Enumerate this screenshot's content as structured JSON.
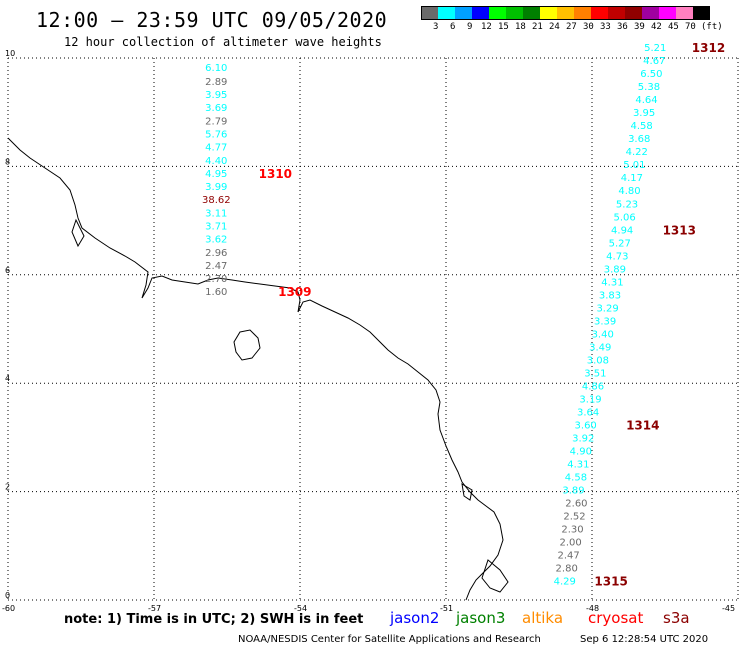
{
  "header": {
    "title": "12:00 – 23:59 UTC 09/05/2020",
    "subtitle": "12 hour collection of altimeter wave heights"
  },
  "legend": {
    "colors": [
      "#6a6a6a",
      "#00ffff",
      "#00a0ff",
      "#0000ff",
      "#00ff00",
      "#00c000",
      "#008000",
      "#ffff00",
      "#ffc000",
      "#ff8000",
      "#ff0000",
      "#c00000",
      "#900000",
      "#a000a0",
      "#ff00ff",
      "#ff80c0",
      "#000000"
    ],
    "ticks": [
      "3",
      "6",
      "9",
      "12",
      "15",
      "18",
      "21",
      "24",
      "27",
      "30",
      "33",
      "36",
      "39",
      "42",
      "45",
      "70"
    ],
    "unit": "(ft)"
  },
  "note": "note:  1) Time is in UTC; 2) SWH is in feet",
  "satellites": [
    {
      "name": "jason2",
      "color": "#0000ff"
    },
    {
      "name": "jason3",
      "color": "#008000"
    },
    {
      "name": "altika",
      "color": "#ff8c00"
    },
    {
      "name": "cryosat",
      "color": "#ff0000"
    },
    {
      "name": "s3a",
      "color": "#8b0000"
    }
  ],
  "footer": {
    "center": "NOAA/NESDIS Center for Satellite Applications and Research",
    "timestamp": "Sep  6 12:28:54 UTC 2020"
  },
  "chart_data": {
    "type": "scatter",
    "xlim": [
      -60,
      -45
    ],
    "ylim": [
      0,
      10
    ],
    "x_ticks": [
      "-60",
      "-57",
      "-54",
      "-51",
      "-48",
      "-45"
    ],
    "y_ticks": [
      "0",
      "2",
      "4",
      "6",
      "8",
      "10"
    ],
    "grid": true,
    "series": [
      {
        "track": "west",
        "points": [
          {
            "lon": -55.72,
            "lat": 9.83,
            "value": "6.10",
            "color": "#00ffff"
          },
          {
            "lon": -55.72,
            "lat": 9.58,
            "value": "2.89",
            "color": "#6a6a6a"
          },
          {
            "lon": -55.72,
            "lat": 9.34,
            "value": "3.95",
            "color": "#00ffff"
          },
          {
            "lon": -55.72,
            "lat": 9.1,
            "value": "3.69",
            "color": "#00ffff"
          },
          {
            "lon": -55.72,
            "lat": 8.85,
            "value": "2.79",
            "color": "#6a6a6a"
          },
          {
            "lon": -55.72,
            "lat": 8.61,
            "value": "5.76",
            "color": "#00ffff"
          },
          {
            "lon": -55.72,
            "lat": 8.37,
            "value": "4.77",
            "color": "#00ffff"
          },
          {
            "lon": -55.72,
            "lat": 8.12,
            "value": "4.40",
            "color": "#00ffff"
          },
          {
            "lon": -55.72,
            "lat": 7.88,
            "value": "4.95",
            "color": "#00ffff"
          },
          {
            "lon": -55.72,
            "lat": 7.64,
            "value": "3.99",
            "color": "#00ffff"
          },
          {
            "lon": -55.72,
            "lat": 7.4,
            "value": "38.62",
            "color": "#900000"
          },
          {
            "lon": -55.72,
            "lat": 7.15,
            "value": "3.11",
            "color": "#00ffff"
          },
          {
            "lon": -55.72,
            "lat": 6.91,
            "value": "3.71",
            "color": "#00ffff"
          },
          {
            "lon": -55.72,
            "lat": 6.67,
            "value": "3.62",
            "color": "#00ffff"
          },
          {
            "lon": -55.72,
            "lat": 6.42,
            "value": "2.96",
            "color": "#6a6a6a"
          },
          {
            "lon": -55.72,
            "lat": 6.18,
            "value": "2.47",
            "color": "#6a6a6a"
          },
          {
            "lon": -55.72,
            "lat": 5.94,
            "value": "2.70",
            "color": "#6a6a6a"
          },
          {
            "lon": -55.72,
            "lat": 5.7,
            "value": "1.60",
            "color": "#6a6a6a"
          }
        ]
      },
      {
        "track": "east",
        "points": [
          {
            "lon": -46.7,
            "lat": 10.2,
            "value": "5.21",
            "color": "#00ffff"
          },
          {
            "lon": -46.72,
            "lat": 9.96,
            "value": "4.67",
            "color": "#00ffff"
          },
          {
            "lon": -46.78,
            "lat": 9.72,
            "value": "6.50",
            "color": "#00ffff"
          },
          {
            "lon": -46.83,
            "lat": 9.48,
            "value": "5.38",
            "color": "#00ffff"
          },
          {
            "lon": -46.88,
            "lat": 9.24,
            "value": "4.64",
            "color": "#00ffff"
          },
          {
            "lon": -46.93,
            "lat": 9.0,
            "value": "3.95",
            "color": "#00ffff"
          },
          {
            "lon": -46.98,
            "lat": 8.76,
            "value": "4.58",
            "color": "#00ffff"
          },
          {
            "lon": -47.03,
            "lat": 8.52,
            "value": "3.68",
            "color": "#00ffff"
          },
          {
            "lon": -47.08,
            "lat": 8.28,
            "value": "4.22",
            "color": "#00ffff"
          },
          {
            "lon": -47.13,
            "lat": 8.04,
            "value": "5.01",
            "color": "#00ffff"
          },
          {
            "lon": -47.18,
            "lat": 7.8,
            "value": "4.17",
            "color": "#00ffff"
          },
          {
            "lon": -47.23,
            "lat": 7.56,
            "value": "4.80",
            "color": "#00ffff"
          },
          {
            "lon": -47.28,
            "lat": 7.32,
            "value": "5.23",
            "color": "#00ffff"
          },
          {
            "lon": -47.33,
            "lat": 7.08,
            "value": "5.06",
            "color": "#00ffff"
          },
          {
            "lon": -47.38,
            "lat": 6.84,
            "value": "4.94",
            "color": "#00ffff"
          },
          {
            "lon": -47.43,
            "lat": 6.6,
            "value": "5.27",
            "color": "#00ffff"
          },
          {
            "lon": -47.48,
            "lat": 6.36,
            "value": "4.73",
            "color": "#00ffff"
          },
          {
            "lon": -47.53,
            "lat": 6.12,
            "value": "3.89",
            "color": "#00ffff"
          },
          {
            "lon": -47.58,
            "lat": 5.88,
            "value": "4.31",
            "color": "#00ffff"
          },
          {
            "lon": -47.63,
            "lat": 5.64,
            "value": "3.83",
            "color": "#00ffff"
          },
          {
            "lon": -47.68,
            "lat": 5.4,
            "value": "3.29",
            "color": "#00ffff"
          },
          {
            "lon": -47.73,
            "lat": 5.16,
            "value": "3.39",
            "color": "#00ffff"
          },
          {
            "lon": -47.78,
            "lat": 4.92,
            "value": "3.40",
            "color": "#00ffff"
          },
          {
            "lon": -47.83,
            "lat": 4.68,
            "value": "3.49",
            "color": "#00ffff"
          },
          {
            "lon": -47.88,
            "lat": 4.44,
            "value": "3.08",
            "color": "#00ffff"
          },
          {
            "lon": -47.93,
            "lat": 4.2,
            "value": "3.51",
            "color": "#00ffff"
          },
          {
            "lon": -47.98,
            "lat": 3.96,
            "value": "4.86",
            "color": "#00ffff"
          },
          {
            "lon": -48.03,
            "lat": 3.72,
            "value": "3.19",
            "color": "#00ffff"
          },
          {
            "lon": -48.08,
            "lat": 3.48,
            "value": "3.64",
            "color": "#00ffff"
          },
          {
            "lon": -48.13,
            "lat": 3.24,
            "value": "3.60",
            "color": "#00ffff"
          },
          {
            "lon": -48.18,
            "lat": 3.0,
            "value": "3.92",
            "color": "#00ffff"
          },
          {
            "lon": -48.23,
            "lat": 2.76,
            "value": "4.90",
            "color": "#00ffff"
          },
          {
            "lon": -48.28,
            "lat": 2.52,
            "value": "4.31",
            "color": "#00ffff"
          },
          {
            "lon": -48.33,
            "lat": 2.28,
            "value": "4.58",
            "color": "#00ffff"
          },
          {
            "lon": -48.38,
            "lat": 2.04,
            "value": "3.89",
            "color": "#00ffff"
          },
          {
            "lon": -48.32,
            "lat": 1.8,
            "value": "2.60",
            "color": "#6a6a6a"
          },
          {
            "lon": -48.36,
            "lat": 1.56,
            "value": "2.52",
            "color": "#6a6a6a"
          },
          {
            "lon": -48.4,
            "lat": 1.32,
            "value": "2.30",
            "color": "#6a6a6a"
          },
          {
            "lon": -48.44,
            "lat": 1.08,
            "value": "2.00",
            "color": "#6a6a6a"
          },
          {
            "lon": -48.48,
            "lat": 0.84,
            "value": "2.47",
            "color": "#6a6a6a"
          },
          {
            "lon": -48.52,
            "lat": 0.6,
            "value": "2.80",
            "color": "#6a6a6a"
          },
          {
            "lon": -48.56,
            "lat": 0.36,
            "value": "4.29",
            "color": "#00ffff"
          }
        ]
      }
    ],
    "annotations": [
      {
        "text": "1310",
        "lon": -54.85,
        "lat": 7.88,
        "color": "#ff0000"
      },
      {
        "text": "1309",
        "lon": -54.45,
        "lat": 5.7,
        "color": "#ff0000"
      },
      {
        "text": "1312",
        "lon": -45.95,
        "lat": 10.2,
        "color": "#8b0000"
      },
      {
        "text": "1313",
        "lon": -46.55,
        "lat": 6.84,
        "color": "#8b0000"
      },
      {
        "text": "1314",
        "lon": -47.3,
        "lat": 3.24,
        "color": "#8b0000"
      },
      {
        "text": "1315",
        "lon": -47.95,
        "lat": 0.36,
        "color": "#8b0000"
      }
    ]
  }
}
